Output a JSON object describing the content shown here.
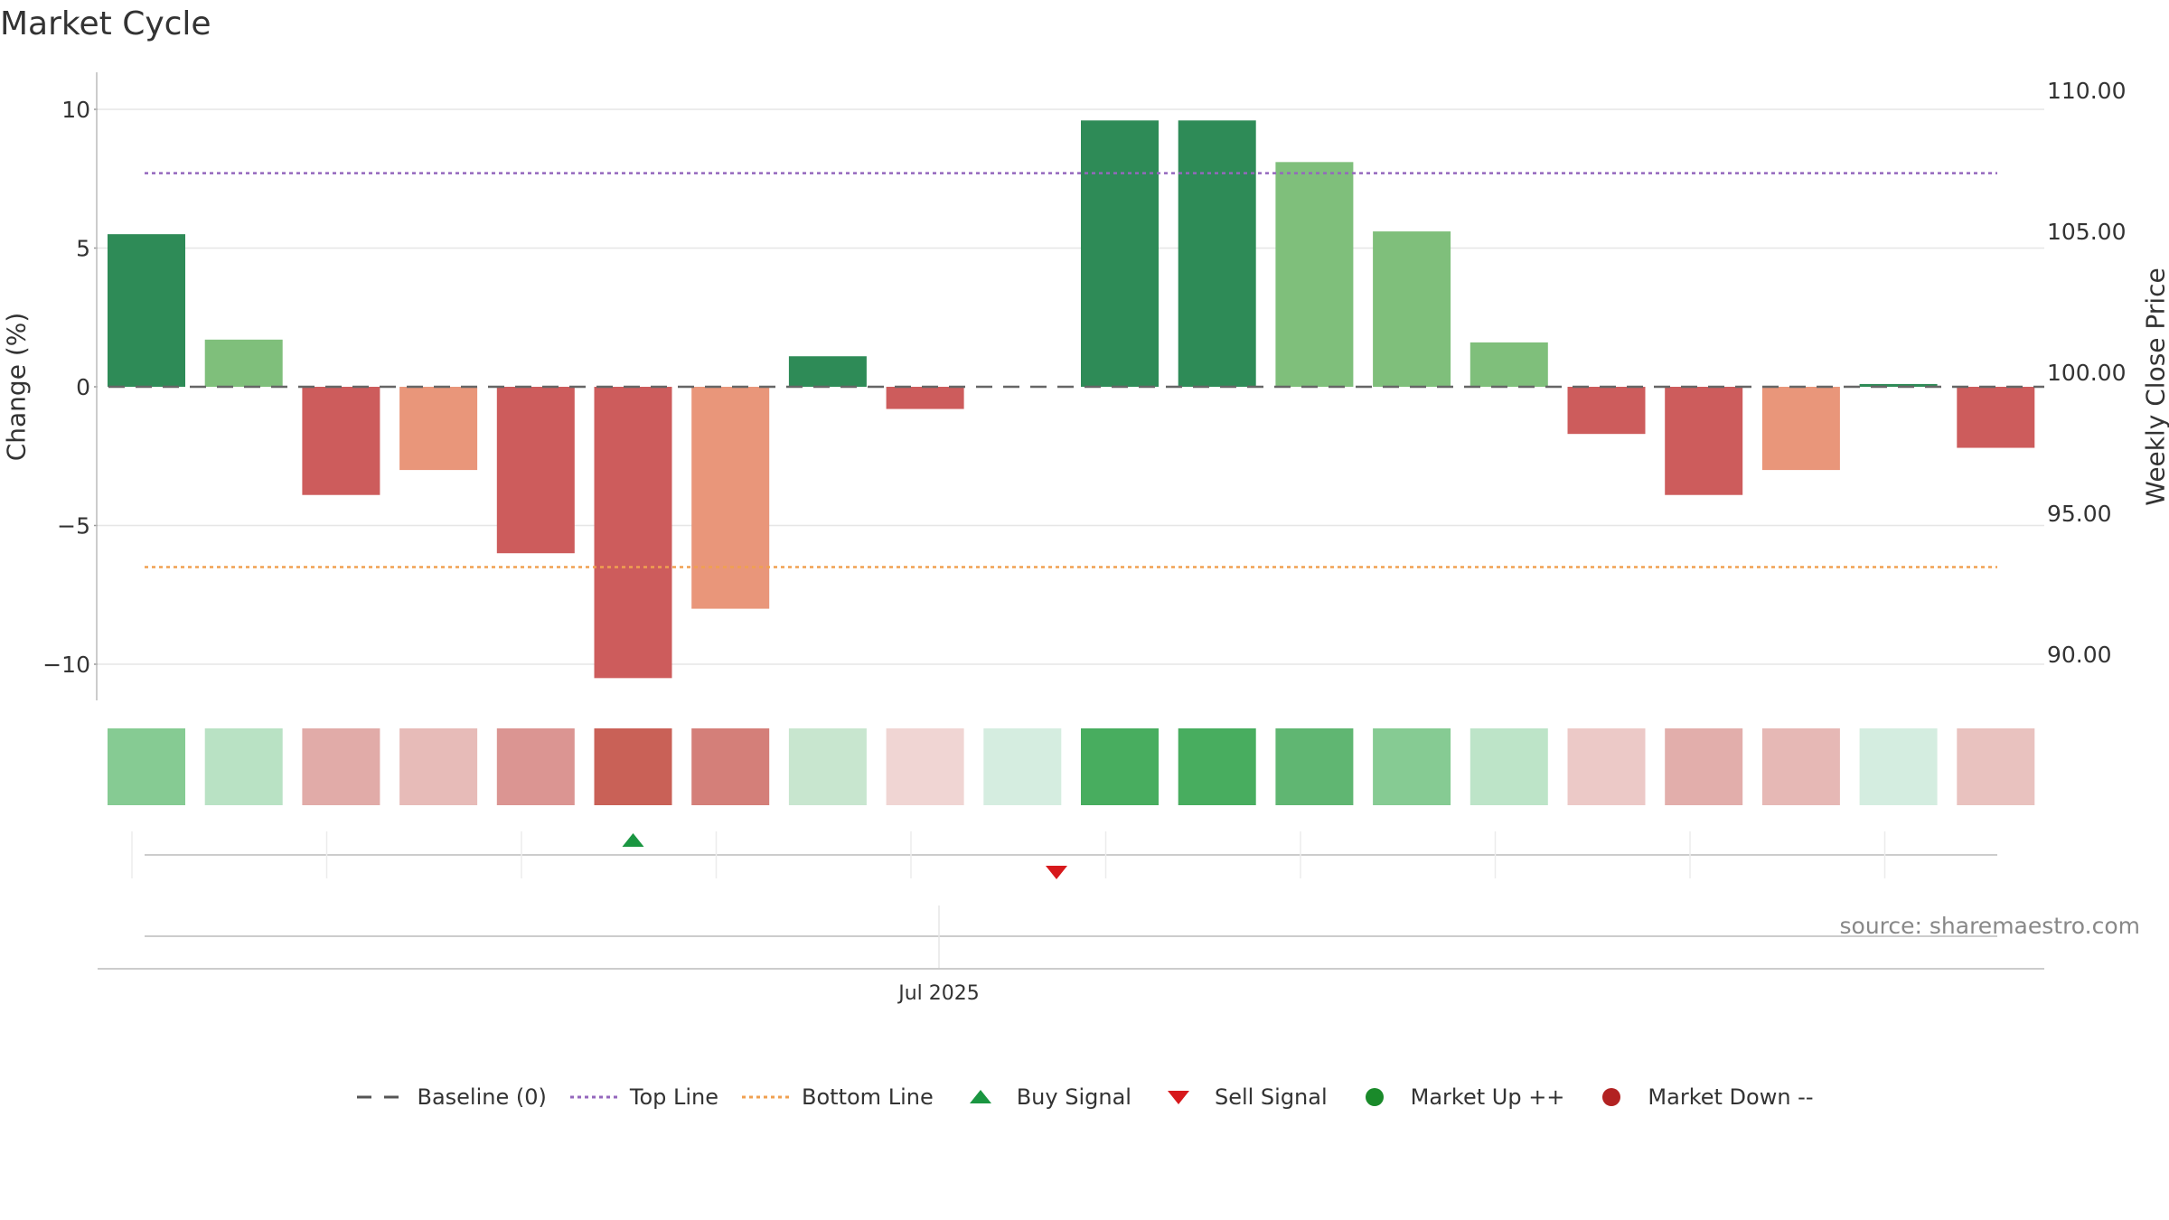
{
  "chart_data": {
    "type": "bar",
    "title": "Market Cycle",
    "ylabel": "Change (%)",
    "ylabel_right": "Weekly Close Price",
    "source": "source: sharemaestro.com",
    "ylim": [
      -11.4,
      13.3
    ],
    "yticks": [
      10,
      5,
      0,
      -5,
      -10
    ],
    "ytick_labels": [
      "10",
      "5",
      "0",
      "−5",
      "−10"
    ],
    "y2ticks": [
      "110.00",
      "105.00",
      "100.00",
      "95.00",
      "90.00"
    ],
    "xtick_label": "Jul 2025",
    "values": [
      5.5,
      1.7,
      -3.9,
      -3.0,
      -6.0,
      -10.5,
      -8.0,
      1.1,
      -0.8,
      0.0,
      9.6,
      9.6,
      8.1,
      5.6,
      1.6,
      -1.7,
      -3.9,
      -3.0,
      0.1,
      -2.2
    ],
    "bar_colors": [
      "#2e8b57",
      "#7fbf7b",
      "#cd5c5c",
      "#e9967a",
      "#cd5c5c",
      "#cd5c5c",
      "#e9967a",
      "#2e8b57",
      "#cd5c5c",
      "#2e8b57",
      "#2e8b57",
      "#2e8b57",
      "#7fbf7b",
      "#7fbf7b",
      "#7fbf7b",
      "#cd5c5c",
      "#cd5c5c",
      "#e9967a",
      "#2e8b57",
      "#cd5c5c"
    ],
    "heat_colors": [
      "#86cb93",
      "#b9e2c4",
      "#e1aba8",
      "#e7bbb8",
      "#db9592",
      "#c96157",
      "#d47f79",
      "#c8e6cf",
      "#f0d5d3",
      "#d5ede0",
      "#48ad5f",
      "#48ad5f",
      "#60b672",
      "#86cb93",
      "#bde4c8",
      "#ecc9c7",
      "#e2aeab",
      "#e6b8b5",
      "#d4ede0",
      "#e9c2bf"
    ],
    "top_line": 7.7,
    "bottom_line": -6.5,
    "baseline": 0,
    "signals": [
      {
        "type": "buy",
        "bar_index": 5
      },
      {
        "type": "sell",
        "bar_index": 10
      }
    ],
    "legend": [
      {
        "label": "Baseline (0)",
        "marker": "dash-line",
        "color": "#555555"
      },
      {
        "label": "Top Line",
        "marker": "dotted-line",
        "color": "#9467bd"
      },
      {
        "label": "Bottom Line",
        "marker": "dotted-line",
        "color": "#f0a050"
      },
      {
        "label": "Buy Signal",
        "marker": "triangle-up-icon",
        "color": "#1a9641"
      },
      {
        "label": "Sell Signal",
        "marker": "triangle-down-icon",
        "color": "#d7191c"
      },
      {
        "label": "Market Up ++",
        "marker": "circle-icon",
        "color": "#1a8a2a"
      },
      {
        "label": "Market Down --",
        "marker": "circle-icon",
        "color": "#b22222"
      }
    ],
    "grid": true,
    "legend_position": "bottom-center"
  }
}
